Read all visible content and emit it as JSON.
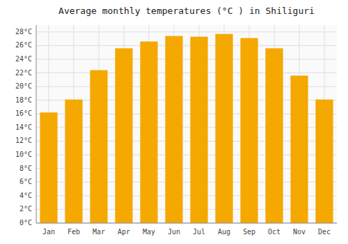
{
  "chart_data": {
    "type": "bar",
    "title": "Average monthly temperatures (°C ) in Shiliguri",
    "categories": [
      "Jan",
      "Feb",
      "Mar",
      "Apr",
      "May",
      "Jun",
      "Jul",
      "Aug",
      "Sep",
      "Oct",
      "Nov",
      "Dec"
    ],
    "values": [
      16.2,
      18.1,
      22.4,
      25.6,
      26.6,
      27.4,
      27.3,
      27.7,
      27.1,
      25.6,
      21.6,
      18.1
    ],
    "color": "#F5A800",
    "ylim": [
      0,
      29
    ],
    "yticks": [
      {
        "value": 0,
        "label": "0°C"
      },
      {
        "value": 2,
        "label": "2°C"
      },
      {
        "value": 4,
        "label": "4°C"
      },
      {
        "value": 6,
        "label": "6°C"
      },
      {
        "value": 8,
        "label": "8°C"
      },
      {
        "value": 10,
        "label": "10°C"
      },
      {
        "value": 12,
        "label": "12°C"
      },
      {
        "value": 14,
        "label": "14°C"
      },
      {
        "value": 16,
        "label": "16°C"
      },
      {
        "value": 18,
        "label": "18°C"
      },
      {
        "value": 20,
        "label": "20°C"
      },
      {
        "value": 22,
        "label": "22°C"
      },
      {
        "value": 24,
        "label": "24°C"
      },
      {
        "value": 26,
        "label": "26°C"
      },
      {
        "value": 28,
        "label": "28°C"
      }
    ],
    "grid": true
  }
}
